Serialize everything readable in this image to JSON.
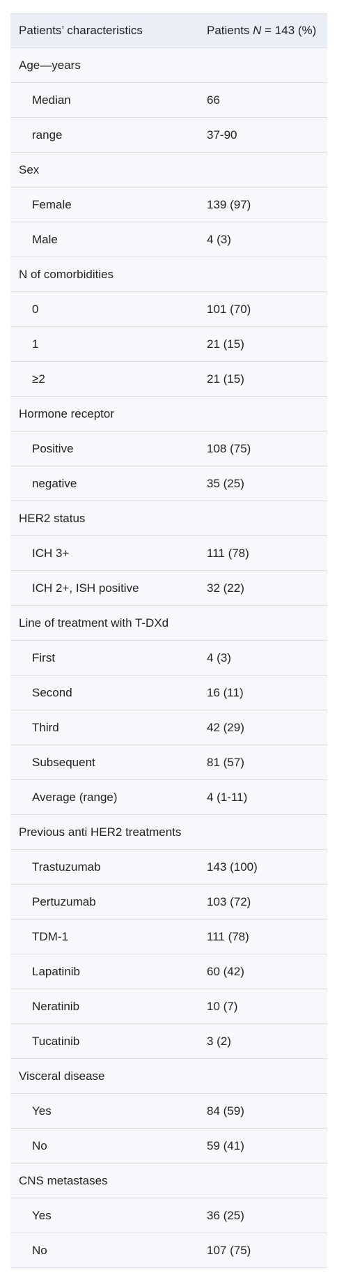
{
  "header": {
    "col1": "Patients’ characteristics",
    "col2_prefix": "Patients ",
    "col2_n": "N",
    "col2_suffix": " = 143 (%)"
  },
  "rows": [
    {
      "type": "group",
      "label": "Age—years",
      "value": ""
    },
    {
      "type": "item",
      "label": "Median",
      "value": "66"
    },
    {
      "type": "item",
      "label": "range",
      "value": "37-90"
    },
    {
      "type": "group",
      "label": "Sex",
      "value": ""
    },
    {
      "type": "item",
      "label": "Female",
      "value": "139 (97)"
    },
    {
      "type": "item",
      "label": "Male",
      "value": "4 (3)"
    },
    {
      "type": "group",
      "label": "N of comorbidities",
      "value": ""
    },
    {
      "type": "item",
      "label": "0",
      "value": "101 (70)"
    },
    {
      "type": "item",
      "label": "1",
      "value": "21 (15)"
    },
    {
      "type": "item",
      "label": "≥2",
      "value": "21 (15)"
    },
    {
      "type": "group",
      "label": "Hormone receptor",
      "value": ""
    },
    {
      "type": "item",
      "label": "Positive",
      "value": "108 (75)"
    },
    {
      "type": "item",
      "label": "negative",
      "value": "35 (25)"
    },
    {
      "type": "group",
      "label": "HER2 status",
      "value": ""
    },
    {
      "type": "item",
      "label": "ICH 3+",
      "value": "111 (78)"
    },
    {
      "type": "item",
      "label": "ICH 2+, ISH positive",
      "value": "32 (22)"
    },
    {
      "type": "group",
      "label": "Line of treatment with T-DXd",
      "value": ""
    },
    {
      "type": "item",
      "label": "First",
      "value": "4 (3)"
    },
    {
      "type": "item",
      "label": "Second",
      "value": "16 (11)"
    },
    {
      "type": "item",
      "label": "Third",
      "value": "42 (29)"
    },
    {
      "type": "item",
      "label": "Subsequent",
      "value": "81 (57)"
    },
    {
      "type": "item",
      "label": "Average (range)",
      "value": "4 (1-11)"
    },
    {
      "type": "group",
      "label": "Previous anti HER2 treatments",
      "value": ""
    },
    {
      "type": "item",
      "label": "Trastuzumab",
      "value": "143 (100)"
    },
    {
      "type": "item",
      "label": "Pertuzumab",
      "value": "103 (72)"
    },
    {
      "type": "item",
      "label": "TDM-1",
      "value": "111 (78)"
    },
    {
      "type": "item",
      "label": "Lapatinib",
      "value": "60 (42)"
    },
    {
      "type": "item",
      "label": "Neratinib",
      "value": "10 (7)"
    },
    {
      "type": "item",
      "label": "Tucatinib",
      "value": "3 (2)"
    },
    {
      "type": "group",
      "label": "Visceral disease",
      "value": ""
    },
    {
      "type": "item",
      "label": "Yes",
      "value": "84 (59)"
    },
    {
      "type": "item",
      "label": "No",
      "value": "59 (41)"
    },
    {
      "type": "group",
      "label": "CNS metastases",
      "value": ""
    },
    {
      "type": "item",
      "label": "Yes",
      "value": "36 (25)"
    },
    {
      "type": "item",
      "label": "No",
      "value": "107 (75)"
    }
  ]
}
